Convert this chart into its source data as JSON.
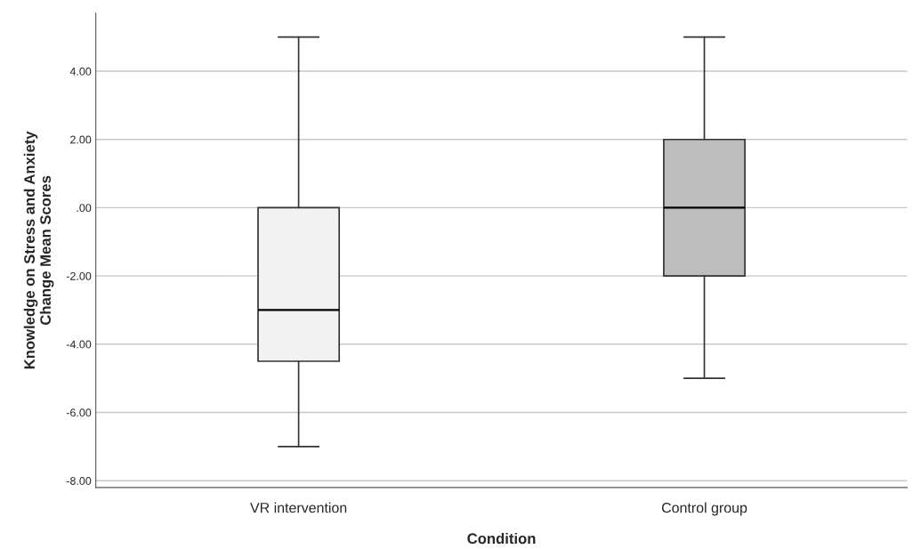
{
  "chart_data": {
    "type": "box",
    "xlabel": "Condition",
    "ylabel": "Knowledge on Stress and Anxiety\nChange Mean Scores",
    "categories": [
      "VR intervention",
      "Control group"
    ],
    "boxes": [
      {
        "low": -7,
        "q1": -4.5,
        "median": -3,
        "q3": 0,
        "high": 5
      },
      {
        "low": -5,
        "q1": -2,
        "median": 0,
        "q3": 2,
        "high": 5
      }
    ],
    "colors": [
      "#f2f2f2",
      "#bdbdbd"
    ],
    "ylim": [
      -8.2,
      5.7
    ],
    "yticks": [
      {
        "value": -8,
        "label": "-8.00"
      },
      {
        "value": -6,
        "label": "-6.00"
      },
      {
        "value": -4,
        "label": "-4.00"
      },
      {
        "value": -2,
        "label": "-2.00"
      },
      {
        "value": 0,
        "label": ".00"
      },
      {
        "value": 2,
        "label": "2.00"
      },
      {
        "value": 4,
        "label": "4.00"
      }
    ],
    "grid": "y"
  }
}
